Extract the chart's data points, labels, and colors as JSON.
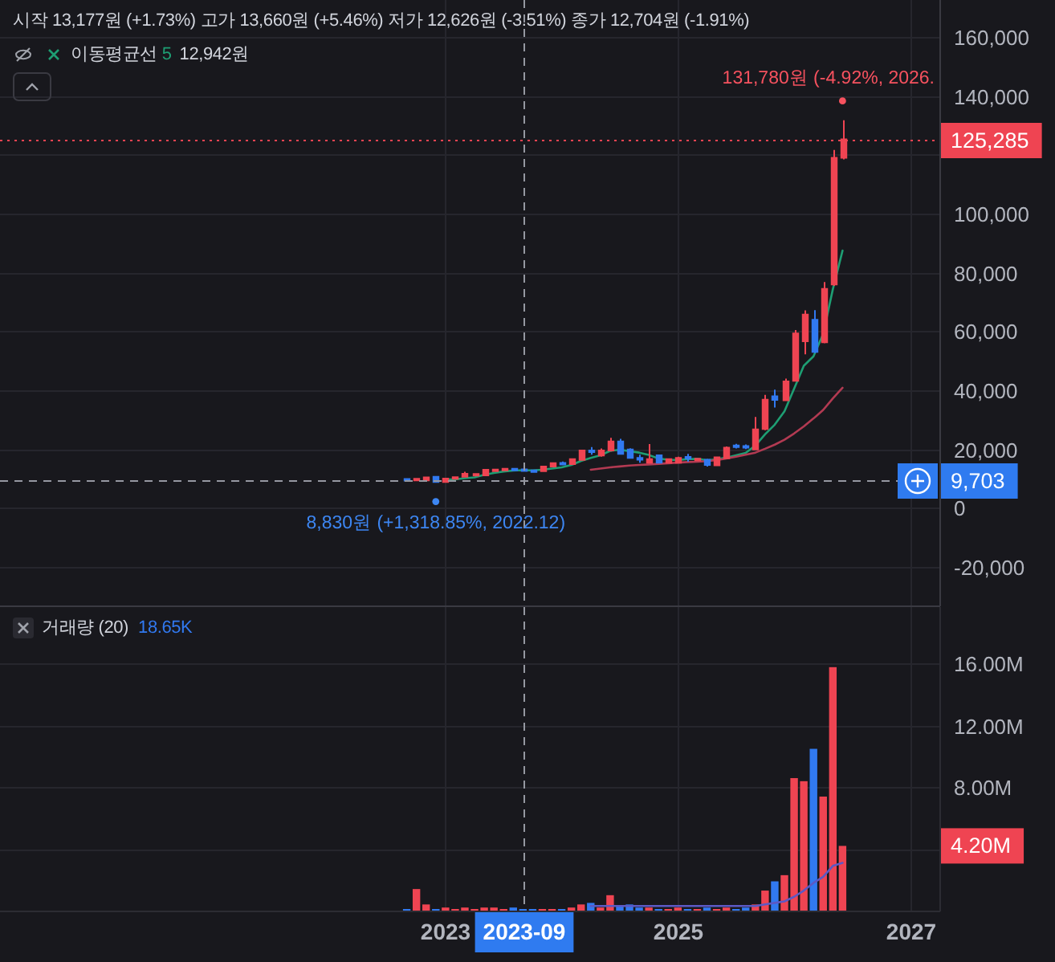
{
  "chart_data": [
    {
      "type": "candlestick",
      "title": "시작 13,177원 (+1.73%) 고가 13,660원 (+5.46%) 저가 12,626원 (-3.51%) 종가 12,704원 (-1.91%)",
      "x": [
        "2022-09",
        "2022-10",
        "2022-11",
        "2022-12",
        "2023-01",
        "2023-02",
        "2023-03",
        "2023-04",
        "2023-05",
        "2023-06",
        "2023-07",
        "2023-08",
        "2023-09",
        "2023-10",
        "2023-11",
        "2023-12",
        "2024-01",
        "2024-02",
        "2024-03",
        "2024-04",
        "2024-05",
        "2024-06",
        "2024-07",
        "2024-08",
        "2024-09",
        "2024-10",
        "2024-11",
        "2024-12",
        "2025-01",
        "2025-02",
        "2025-03",
        "2025-04",
        "2025-05",
        "2025-06",
        "2025-07",
        "2025-08",
        "2025-09",
        "2025-10",
        "2025-11",
        "2025-12",
        "2026-01",
        "2026-02",
        "2026-03",
        "2026-04",
        "2026-05",
        "2026-06"
      ],
      "ohlc": [
        [
          9700,
          9800,
          9600,
          9650
        ],
        [
          9700,
          9900,
          9600,
          9800
        ],
        [
          9500,
          10700,
          9400,
          10500
        ],
        [
          10700,
          10900,
          8830,
          8900
        ],
        [
          8900,
          10300,
          8850,
          10100
        ],
        [
          10100,
          10700,
          10000,
          10500
        ],
        [
          10700,
          12400,
          10600,
          11700
        ],
        [
          11300,
          11900,
          11100,
          11500
        ],
        [
          11200,
          13300,
          11000,
          13100
        ],
        [
          12800,
          13400,
          12500,
          13000
        ],
        [
          13000,
          13700,
          12700,
          13300
        ],
        [
          13300,
          13500,
          12700,
          12953
        ],
        [
          13177,
          13660,
          12626,
          12704
        ],
        [
          12700,
          13100,
          12200,
          12500
        ],
        [
          12600,
          14400,
          12500,
          14200
        ],
        [
          14200,
          15500,
          14000,
          15300
        ],
        [
          15300,
          15900,
          14600,
          15000
        ],
        [
          15000,
          16900,
          14800,
          16700
        ],
        [
          16400,
          19900,
          16200,
          19600
        ],
        [
          19600,
          20800,
          18200,
          19100
        ],
        [
          17900,
          20300,
          17500,
          19600
        ],
        [
          19600,
          23900,
          19300,
          22700
        ],
        [
          22700,
          23600,
          18300,
          18500
        ],
        [
          20000,
          20400,
          16800,
          17100
        ],
        [
          17100,
          18200,
          15500,
          16500
        ],
        [
          15500,
          21800,
          15200,
          16700
        ],
        [
          18000,
          18200,
          15300,
          15500
        ],
        [
          15500,
          17000,
          15300,
          16700
        ],
        [
          15500,
          17500,
          15300,
          17100
        ],
        [
          17300,
          18500,
          15800,
          17100
        ],
        [
          16400,
          17000,
          16100,
          16700
        ],
        [
          16500,
          16800,
          14200,
          14700
        ],
        [
          14600,
          17500,
          14400,
          17300
        ],
        [
          17000,
          21000,
          16800,
          20600
        ],
        [
          21200,
          21900,
          20300,
          20900
        ],
        [
          21000,
          21700,
          20100,
          20700
        ],
        [
          20000,
          31000,
          19800,
          26800
        ],
        [
          26900,
          38500,
          26500,
          36900
        ],
        [
          38000,
          40300,
          34200,
          36800
        ],
        [
          36700,
          44000,
          36500,
          43100
        ],
        [
          43300,
          60500,
          43000,
          59400
        ],
        [
          56700,
          67200,
          52300,
          65800
        ],
        [
          64000,
          67300,
          52700,
          53100
        ],
        [
          56400,
          76800,
          56000,
          74500
        ],
        [
          76000,
          121700,
          75500,
          119000
        ],
        [
          119000,
          131780,
          118500,
          125285
        ]
      ],
      "colors": [
        "#3179f0",
        "#ef4452",
        "#ef4452",
        "#3179f0",
        "#ef4452",
        "#ef4452",
        "#ef4452",
        "#ef4452",
        "#ef4452",
        "#ef4452",
        "#ef4452",
        "#3179f0",
        "#3179f0",
        "#3179f0",
        "#ef4452",
        "#ef4452",
        "#3179f0",
        "#ef4452",
        "#ef4452",
        "#3179f0",
        "#ef4452",
        "#ef4452",
        "#3179f0",
        "#3179f0",
        "#3179f0",
        "#ef4452",
        "#3179f0",
        "#ef4452",
        "#ef4452",
        "#3179f0",
        "#ef4452",
        "#3179f0",
        "#ef4452",
        "#ef4452",
        "#3179f0",
        "#3179f0",
        "#ef4452",
        "#ef4452",
        "#3179f0",
        "#ef4452",
        "#ef4452",
        "#ef4452",
        "#3179f0",
        "#ef4452",
        "#ef4452",
        "#ef4452"
      ],
      "series": [
        {
          "name": "이동평균선 5",
          "type": "line",
          "color": "#1e9e73",
          "x": [
            "2023-01",
            "2023-02",
            "2023-03",
            "2023-04",
            "2023-05",
            "2023-06",
            "2023-07",
            "2023-08",
            "2023-09",
            "2023-10",
            "2023-11",
            "2023-12",
            "2024-01",
            "2024-02",
            "2024-03",
            "2024-04",
            "2024-05",
            "2024-06",
            "2024-07",
            "2024-08",
            "2024-09",
            "2024-10",
            "2024-11",
            "2024-12",
            "2025-01",
            "2025-02",
            "2025-03",
            "2025-04",
            "2025-05",
            "2025-06",
            "2025-07",
            "2025-08",
            "2025-09",
            "2025-10",
            "2025-11",
            "2025-12",
            "2026-01",
            "2026-02",
            "2026-03",
            "2026-04",
            "2026-05",
            "2026-06"
          ],
          "values": [
            9800,
            9800,
            10200,
            10500,
            11400,
            12000,
            12500,
            12800,
            12942,
            12900,
            13100,
            13500,
            13900,
            14700,
            16100,
            17100,
            18000,
            19500,
            19900,
            19400,
            18900,
            18100,
            16900,
            16500,
            16400,
            16700,
            16800,
            16300,
            16600,
            17200,
            18000,
            18800,
            21300,
            25100,
            28400,
            32900,
            40600,
            48400,
            51600,
            59200,
            74400,
            87500
          ]
        },
        {
          "type": "line",
          "color": "#b23a52",
          "x": [
            "2024-04",
            "2024-05",
            "2024-06",
            "2024-07",
            "2024-08",
            "2024-09",
            "2024-10",
            "2024-11",
            "2024-12",
            "2025-01",
            "2025-02",
            "2025-03",
            "2025-04",
            "2025-05",
            "2025-06",
            "2025-07",
            "2025-08",
            "2025-09",
            "2025-10",
            "2025-11",
            "2025-12",
            "2026-01",
            "2026-02",
            "2026-03",
            "2026-04",
            "2026-05",
            "2026-06"
          ],
          "values": [
            13100,
            13500,
            13900,
            14200,
            14500,
            14700,
            14900,
            15100,
            15300,
            15500,
            15700,
            15800,
            16000,
            16400,
            16900,
            17500,
            18200,
            18900,
            20200,
            21600,
            23300,
            25400,
            27800,
            30500,
            33400,
            37300,
            40900
          ]
        }
      ],
      "xlim": [
        "2019-03",
        "2027-04"
      ],
      "xticks": [
        {
          "value": "2023-01",
          "label": null
        },
        {
          "value": "2025-01",
          "label": null
        },
        {
          "value": "2027-01",
          "label": null
        }
      ],
      "ylim": [
        -33000,
        172600
      ],
      "yticks": [
        {
          "value": -20000,
          "label": "-20,000"
        },
        0,
        {
          "value": 20000,
          "label": "20,000"
        },
        {
          "value": 40000,
          "label": "40,000"
        },
        {
          "value": 60000,
          "label": "60,000"
        },
        {
          "value": 80000,
          "label": "80,000"
        },
        {
          "value": 100000,
          "label": "100,000"
        },
        {
          "value": 120000,
          "label": null
        },
        {
          "value": 140000,
          "label": "140,000"
        },
        {
          "value": 160000,
          "label": "160,000"
        }
      ],
      "tick_labels": "y",
      "grid": true,
      "legend": "top left",
      "ref_lines": [
        {
          "axis": "y",
          "value": 125285,
          "label": "125,285",
          "color": "#ef4452",
          "line_style": "dotted"
        },
        {
          "axis": "y",
          "value": 9703,
          "label": "9,703",
          "color": "#9598a1",
          "line_style": "dashed"
        },
        {
          "axis": "x",
          "value": "2023-09",
          "color": "#9598a1",
          "line_style": "dashed"
        }
      ],
      "annotations": [
        "12,942원",
        {
          "text": "131,780원 (-4.92%, 2026.",
          "x": "2026-06",
          "y": 131780
        },
        {
          "text": "8,830원 (+1,318.85%, 2022.12)",
          "x": "2022-12",
          "y": 8830
        }
      ]
    },
    {
      "type": "bar",
      "title": "거래량 (20)",
      "x": [
        "2022-09",
        "2022-10",
        "2022-11",
        "2022-12",
        "2023-01",
        "2023-02",
        "2023-03",
        "2023-04",
        "2023-05",
        "2023-06",
        "2023-07",
        "2023-08",
        "2023-09",
        "2023-10",
        "2023-11",
        "2023-12",
        "2024-01",
        "2024-02",
        "2024-03",
        "2024-04",
        "2024-05",
        "2024-06",
        "2024-07",
        "2024-08",
        "2024-09",
        "2024-10",
        "2024-11",
        "2024-12",
        "2025-01",
        "2025-02",
        "2025-03",
        "2025-04",
        "2025-05",
        "2025-06",
        "2025-07",
        "2025-08",
        "2025-09",
        "2025-10",
        "2025-11",
        "2025-12",
        "2026-01",
        "2026-02",
        "2026-03",
        "2026-04",
        "2026-05",
        "2026-06"
      ],
      "series": [
        {
          "type": "bar",
          "colors": [
            "#3179f0",
            "#ef4452",
            "#ef4452",
            "#3179f0",
            "#ef4452",
            "#ef4452",
            "#ef4452",
            "#ef4452",
            "#ef4452",
            "#ef4452",
            "#ef4452",
            "#3179f0",
            "#3179f0",
            "#3179f0",
            "#ef4452",
            "#ef4452",
            "#3179f0",
            "#ef4452",
            "#ef4452",
            "#3179f0",
            "#ef4452",
            "#ef4452",
            "#3179f0",
            "#3179f0",
            "#3179f0",
            "#ef4452",
            "#3179f0",
            "#ef4452",
            "#ef4452",
            "#3179f0",
            "#ef4452",
            "#3179f0",
            "#ef4452",
            "#ef4452",
            "#3179f0",
            "#3179f0",
            "#ef4452",
            "#ef4452",
            "#3179f0",
            "#ef4452",
            "#ef4452",
            "#ef4452",
            "#3179f0",
            "#ef4452",
            "#ef4452",
            "#ef4452"
          ],
          "values": [
            100000,
            1400000,
            400000,
            100000,
            200000,
            100000,
            200000,
            100000,
            200000,
            200000,
            100000,
            200000,
            18650,
            100000,
            100000,
            100000,
            100000,
            200000,
            400000,
            500000,
            200000,
            1000000,
            300000,
            400000,
            200000,
            200000,
            100000,
            100000,
            200000,
            100000,
            100000,
            200000,
            100000,
            200000,
            100000,
            200000,
            400000,
            1300000,
            1900000,
            2300000,
            8600000,
            8400000,
            10500000,
            7400000,
            15800000,
            4200000
          ]
        },
        {
          "type": "line",
          "color": "#5c59c4",
          "x": [
            "2024-04",
            "2024-05",
            "2024-06",
            "2024-07",
            "2024-08",
            "2024-09",
            "2024-10",
            "2024-11",
            "2024-12",
            "2025-01",
            "2025-02",
            "2025-03",
            "2025-04",
            "2025-05",
            "2025-06",
            "2025-07",
            "2025-08",
            "2025-09",
            "2025-10",
            "2025-11",
            "2025-12",
            "2026-01",
            "2026-02",
            "2026-03",
            "2026-04",
            "2026-05",
            "2026-06"
          ],
          "values": [
            300000,
            300000,
            300000,
            300000,
            300000,
            300000,
            300000,
            300000,
            300000,
            300000,
            300000,
            300000,
            300000,
            300000,
            300000,
            300000,
            300000,
            300000,
            400000,
            500000,
            600000,
            900000,
            1300000,
            1800000,
            2200000,
            2900000,
            3100000
          ]
        }
      ],
      "xlim": [
        "2019-03",
        "2027-04"
      ],
      "xticks": [
        {
          "value": "2023-01",
          "label": "2023"
        },
        {
          "value": "2025-01",
          "label": "2025"
        },
        {
          "value": "2027-01",
          "label": "2027"
        }
      ],
      "ylim": [
        0,
        19700000
      ],
      "yticks": [
        {
          "value": 4000000,
          "label": null
        },
        {
          "value": 8000000,
          "label": "8.00M"
        },
        {
          "value": 12000000,
          "label": "12.00M"
        },
        {
          "value": 16000000,
          "label": "16.00M"
        }
      ],
      "grid": true,
      "ref_lines": [
        {
          "axis": "x",
          "value": "2023-09",
          "label": "2023-09",
          "color": "#9598a1",
          "line_style": "dashed"
        }
      ],
      "annotations": [
        "18.65K",
        "4.20M"
      ]
    }
  ]
}
